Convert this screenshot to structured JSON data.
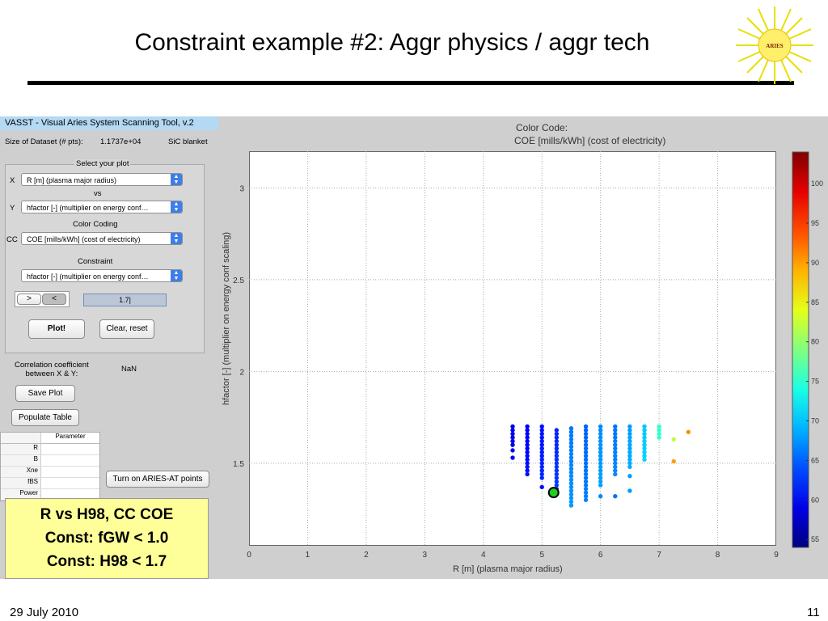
{
  "slide": {
    "title": "Constraint example #2: Aggr physics / aggr tech",
    "date": "29 July 2010",
    "page": "11",
    "logo": "ARIES"
  },
  "app": {
    "title": "VASST - Visual Aries System Scanning Tool, v.2",
    "dataset_label": "Size of Dataset (# pts):",
    "dataset_value": "1.1737e+04",
    "blanket": "SiC blanket",
    "select_plot": "Select your plot",
    "x_label": "X",
    "x_value": "R [m] (plasma major radius)",
    "vs": "vs",
    "y_label": "Y",
    "y_value": "hfactor [-] (multiplier on energy conf…",
    "color_coding": "Color Coding",
    "cc_label": "CC",
    "cc_value": "COE [mills/kWh] (cost of electricity)",
    "constraint": "Constraint",
    "constraint_value": "hfactor [-] (multiplier on energy conf…",
    "gt": ">",
    "lt": "<",
    "constraint_input": "1.7|",
    "plot_btn": "Plot!",
    "clear_btn": "Clear, reset",
    "corr_label": "Correlation coefficient\nbetween X & Y:",
    "corr_value": "NaN",
    "save_btn": "Save Plot",
    "populate_btn": "Populate Table",
    "aries_btn": "Turn on ARIES-AT points",
    "table_header": "Parameter",
    "table_rows": [
      "R",
      "B",
      "Xne",
      "fBS",
      "Power"
    ]
  },
  "caption": [
    "R vs H98, CC COE",
    "Const: fGW < 1.0",
    "Const: H98 < 1.7"
  ],
  "chart_data": {
    "type": "scatter",
    "title_line1": "Color Code:",
    "title_line2": "COE [mills/kWh] (cost of electricity)",
    "xlabel": "R [m] (plasma major radius)",
    "ylabel": "hfactor [-] (multiplier on energy conf scaling)",
    "xlim": [
      0,
      9
    ],
    "ylim": [
      1.05,
      3.2
    ],
    "xticks": [
      0,
      1,
      2,
      3,
      4,
      5,
      6,
      7,
      8,
      9
    ],
    "yticks": [
      1.5,
      2,
      2.5,
      3
    ],
    "colorbar": {
      "min": 54,
      "max": 104,
      "ticks": [
        55,
        60,
        65,
        70,
        75,
        80,
        85,
        90,
        95,
        100
      ]
    },
    "columns": [
      {
        "x": 4.5,
        "ymin": 1.6,
        "ymax": 1.7,
        "coe": 59,
        "extra": [
          1.57,
          1.53
        ]
      },
      {
        "x": 4.75,
        "ymin": 1.44,
        "ymax": 1.7,
        "coe": 60
      },
      {
        "x": 5.0,
        "ymin": 1.42,
        "ymax": 1.7,
        "coe": 61,
        "extra": [
          1.37
        ]
      },
      {
        "x": 5.25,
        "ymin": 1.36,
        "ymax": 1.68,
        "coe": 62
      },
      {
        "x": 5.5,
        "ymin": 1.27,
        "ymax": 1.7,
        "coe": 66
      },
      {
        "x": 5.75,
        "ymin": 1.3,
        "ymax": 1.7,
        "coe": 65
      },
      {
        "x": 6.0,
        "ymin": 1.38,
        "ymax": 1.7,
        "coe": 67,
        "extra": [
          1.32
        ]
      },
      {
        "x": 6.25,
        "ymin": 1.44,
        "ymax": 1.7,
        "coe": 66,
        "extra": [
          1.32
        ]
      },
      {
        "x": 6.5,
        "ymin": 1.48,
        "ymax": 1.7,
        "coe": 68,
        "extra": [
          1.43,
          1.35
        ]
      },
      {
        "x": 6.75,
        "ymin": 1.52,
        "ymax": 1.7,
        "coe": 70
      },
      {
        "x": 7.0,
        "ymin": 1.64,
        "ymax": 1.7,
        "coe": 75
      }
    ],
    "points": [
      {
        "x": 7.25,
        "y": 1.63,
        "coe": 82
      },
      {
        "x": 7.25,
        "y": 1.51,
        "coe": 90
      },
      {
        "x": 7.5,
        "y": 1.67,
        "coe": 91
      }
    ],
    "highlight": {
      "x": 5.2,
      "y": 1.34,
      "color": "#22cc22"
    }
  }
}
